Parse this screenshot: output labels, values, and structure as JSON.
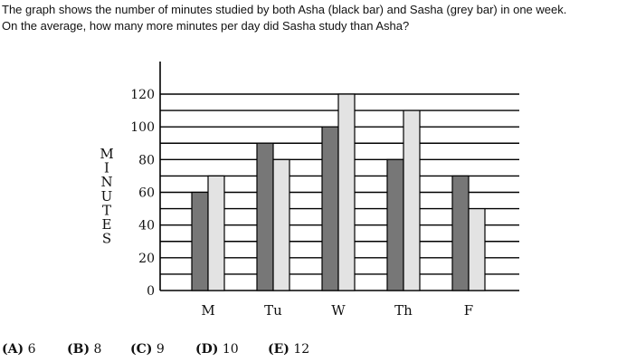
{
  "question": {
    "line1": "The graph shows the number of minutes studied by both Asha (black bar) and Sasha (grey bar) in one week.",
    "line2": "On the average, how many more minutes per day did Sasha study than Asha?"
  },
  "chart_data": {
    "type": "bar",
    "categories": [
      "M",
      "Tu",
      "W",
      "Th",
      "F"
    ],
    "series": [
      {
        "name": "Asha",
        "values": [
          60,
          90,
          100,
          80,
          70
        ],
        "color": "#777777"
      },
      {
        "name": "Sasha",
        "values": [
          70,
          80,
          120,
          110,
          50
        ],
        "color": "#e3e3e3"
      }
    ],
    "ylabel": "MINUTES",
    "ylim": [
      0,
      120
    ],
    "ytick_labels": [
      "0",
      "20",
      "40",
      "60",
      "80",
      "100",
      "120"
    ],
    "grid": true
  },
  "options": [
    {
      "letter": "(A)",
      "value": "6"
    },
    {
      "letter": "(B)",
      "value": "8"
    },
    {
      "letter": "(C)",
      "value": "9"
    },
    {
      "letter": "(D)",
      "value": "10"
    },
    {
      "letter": "(E)",
      "value": "12"
    }
  ]
}
